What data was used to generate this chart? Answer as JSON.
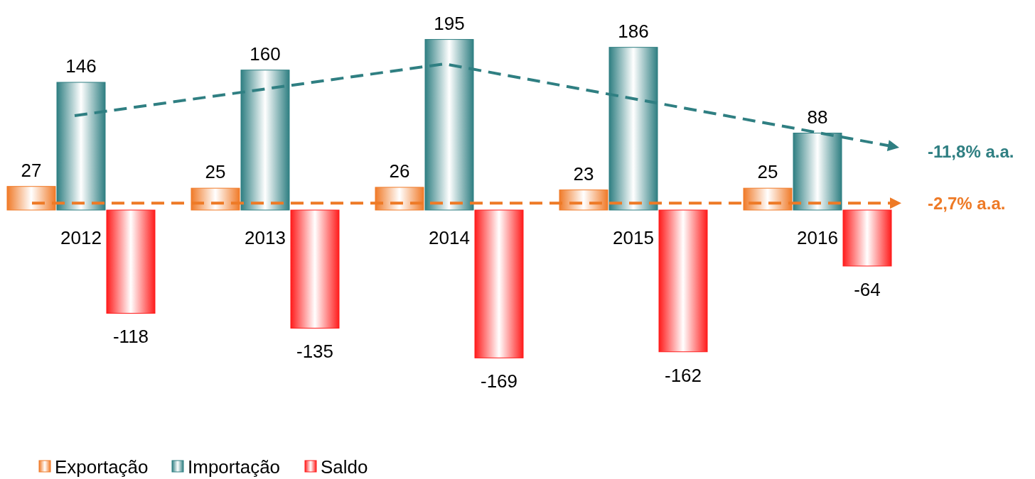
{
  "chart_data": {
    "type": "bar",
    "categories": [
      "2012",
      "2013",
      "2014",
      "2015",
      "2016"
    ],
    "series": [
      {
        "name": "Exportação",
        "color": "#f07a28",
        "values": [
          27,
          25,
          26,
          23,
          25
        ]
      },
      {
        "name": "Importação",
        "color": "#2f7f82",
        "values": [
          146,
          160,
          195,
          186,
          88
        ]
      },
      {
        "name": "Saldo",
        "color": "#ff1c1c",
        "values": [
          -118,
          -135,
          -169,
          -162,
          -64
        ]
      }
    ],
    "data_labels": true,
    "legend": "bottom left",
    "annotations": [
      "-11,8% a.a."
    ],
    "ref_lines": [
      {
        "axis": "y",
        "value": 8,
        "label": "-2,7% a.a.",
        "color": "#ee7a26",
        "line_style": "dashed"
      }
    ]
  }
}
